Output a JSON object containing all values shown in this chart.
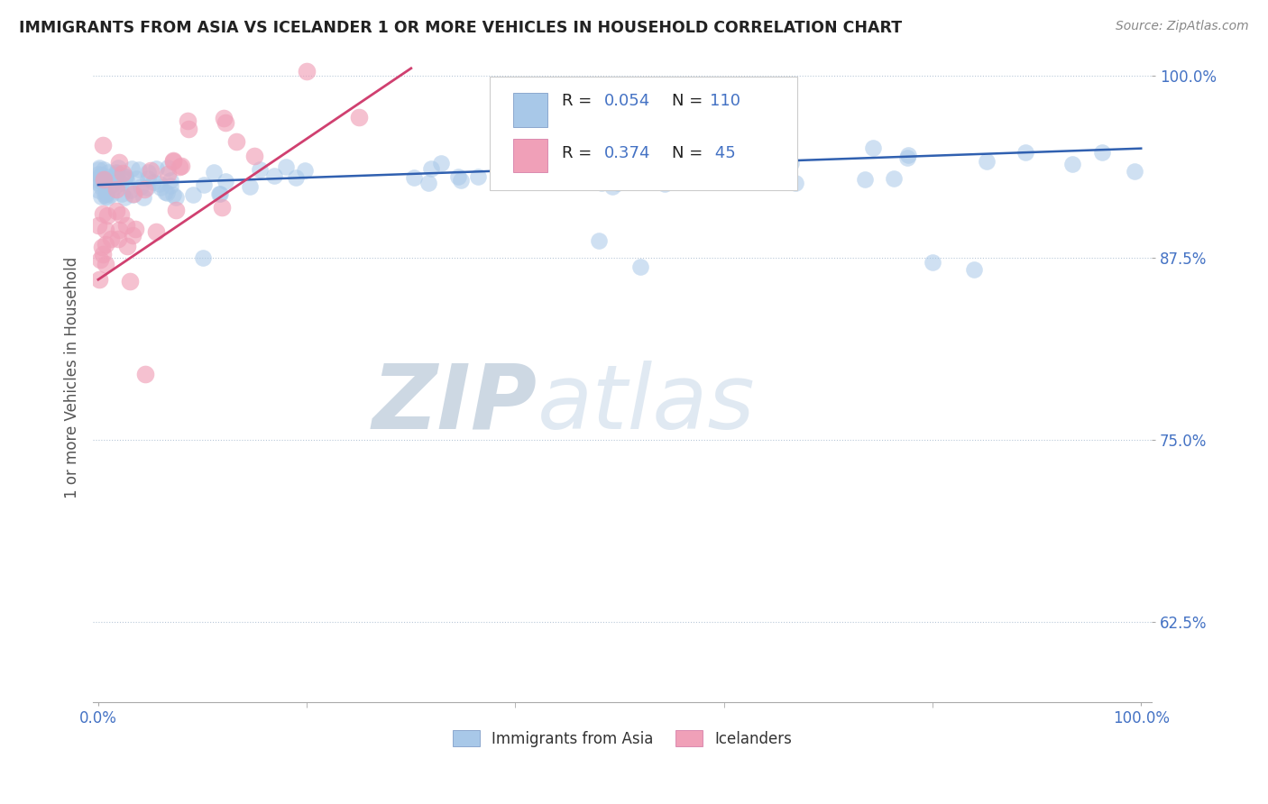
{
  "title": "IMMIGRANTS FROM ASIA VS ICELANDER 1 OR MORE VEHICLES IN HOUSEHOLD CORRELATION CHART",
  "source": "Source: ZipAtlas.com",
  "ylabel": "1 or more Vehicles in Household",
  "yticks": [
    62.5,
    75.0,
    87.5,
    100.0
  ],
  "ytick_labels": [
    "62.5%",
    "75.0%",
    "87.5%",
    "100.0%"
  ],
  "xtick_labels": [
    "0.0%",
    "100.0%"
  ],
  "legend_r1": "R = 0.054",
  "legend_n1": "N = 110",
  "legend_r2": "R = 0.374",
  "legend_n2": "N =  45",
  "label1": "Immigrants from Asia",
  "label2": "Icelanders",
  "color1": "#a8c8e8",
  "color2": "#f0a0b8",
  "line_color1": "#3060b0",
  "line_color2": "#d04070",
  "watermark_zip": "ZIP",
  "watermark_atlas": "atlas",
  "watermark_color": "#d0dce8",
  "background_color": "#ffffff",
  "grid_color": "#b8c8d8",
  "tick_color": "#4472c4",
  "legend_text_color": "#4472c4",
  "legend_label_color": "#222222",
  "ylim_low": 57.0,
  "ylim_high": 101.5,
  "xlim_low": -0.5,
  "xlim_high": 101.0
}
